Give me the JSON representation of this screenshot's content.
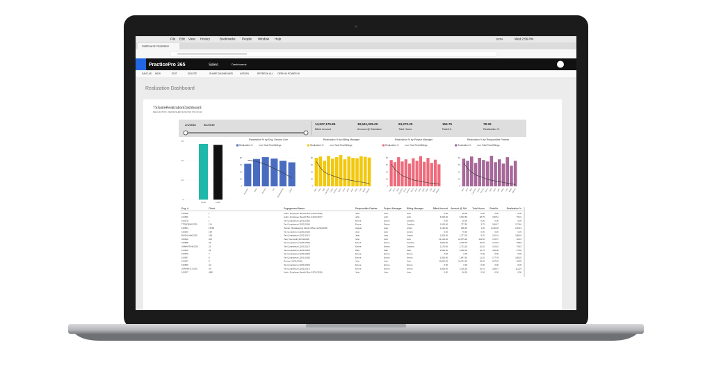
{
  "menu_bar": {
    "menus": [
      "File",
      "Edit",
      "View",
      "History",
      "Bookmarks",
      "People",
      "Window",
      "Help"
    ],
    "battery": "100%",
    "clock": "Wed 2:56 PM"
  },
  "browser": {
    "tab": "Dashboards: Realization"
  },
  "app_header": {
    "brand": "PracticePro 365",
    "area": "Sales",
    "nav": "Dashboards"
  },
  "command_bar": [
    "SAVE AS",
    "NEW",
    "EDIT",
    "DELETE",
    "SHARE DASHBOARD",
    "ASSIGN",
    "REFRESH ALL",
    "OPEN IN POWER BI"
  ],
  "page_title": "Realization Dashboard",
  "report": {
    "title": "TSSuiteRealizationDashboard",
    "subtitle": "REALIZATION • REFRESHED 9/24/2019 3:54:33 AM",
    "date_from": "2/1/2018",
    "date_to": "9/1/2019",
    "kpis": [
      {
        "value": "14,527,175.86",
        "label": "Billed Amount"
      },
      {
        "value": "18,541,035.00",
        "label": "Amount @ Standard"
      },
      {
        "value": "93,270.25",
        "label": "Total Hours"
      },
      {
        "value": "155.75",
        "label": "Rate/Hr."
      },
      {
        "value": "78.35",
        "label": "Realization %"
      }
    ],
    "year_chart": {
      "categories": [
        "2018",
        "2019"
      ],
      "values": [
        28.6,
        28.1
      ],
      "colors": [
        "#1fb8aa",
        "#111111"
      ],
      "ylim": [
        0,
        30
      ],
      "yticks": [
        0,
        10,
        20,
        30
      ]
    },
    "combo_charts": [
      {
        "title": "Realization % by Eng. Service Line",
        "legend": [
          "Realization %",
          "Total Final Billings"
        ],
        "color": "#4a6cc0",
        "categories": [
          "Advisory",
          "Audit",
          "Review",
          "Tax",
          "Bookkeeping",
          "Other"
        ],
        "values": [
          63.5,
          76.9,
          82.1,
          78.3,
          72.0,
          67.5
        ],
        "line_values": [
          74,
          70,
          62,
          50,
          38,
          24
        ],
        "ylim": [
          0,
          90
        ],
        "yticks": [
          0,
          20,
          40,
          60,
          80
        ]
      },
      {
        "title": "Realization % by Billing Manager",
        "legend": [
          "Realization %",
          "Total Final Billings"
        ],
        "color": "#f2c80f",
        "categories": [
          "Alex",
          "Amy",
          "Bob",
          "Carolina",
          "Chris",
          "Emma",
          "Erica",
          "Jack",
          "John",
          "Juan",
          "Kate",
          "Lisa",
          "Mark",
          "Wendy"
        ],
        "values": [
          80,
          84,
          72,
          86,
          78,
          82,
          88,
          76,
          84,
          80,
          79,
          85,
          83,
          81
        ],
        "line_values": [
          70,
          52,
          40,
          34,
          30,
          26,
          22,
          20,
          18,
          16,
          14,
          12,
          10,
          8
        ],
        "ylim": [
          0,
          90
        ],
        "yticks": [
          0,
          20,
          40,
          60,
          80
        ]
      },
      {
        "title": "Realization % by Project Manager",
        "legend": [
          "Realization %",
          "Total Final Billings"
        ],
        "color": "#ee6b7b",
        "categories": [
          "Alex",
          "Amy",
          "Bob",
          "Carolina",
          "Chris",
          "Emma",
          "Erica",
          "Jack",
          "John",
          "Juan",
          "Kate",
          "Lisa",
          "Mark",
          "Wendy"
        ],
        "values": [
          74,
          68,
          82,
          70,
          76,
          64,
          79,
          72,
          85,
          69,
          80,
          66,
          75,
          62
        ],
        "line_values": [
          62,
          48,
          38,
          30,
          26,
          22,
          18,
          16,
          14,
          12,
          10,
          9,
          8,
          6
        ],
        "ylim": [
          0,
          90
        ],
        "yticks": [
          0,
          20,
          40,
          60,
          80
        ]
      },
      {
        "title": "Realization % by Responsible Partner",
        "legend": [
          "Realization %",
          "Total Final Billings"
        ],
        "color": "#a66999",
        "categories": [
          "Alex",
          "Amy",
          "Bob",
          "Carolina",
          "Chris",
          "Emma",
          "Erica",
          "Jack",
          "John",
          "Juan",
          "Kate",
          "Lisa",
          "Mark",
          "Wendy"
        ],
        "values": [
          78,
          72,
          84,
          66,
          80,
          74,
          70,
          86,
          68,
          76,
          64,
          82,
          58,
          72
        ],
        "line_values": [
          66,
          50,
          40,
          32,
          28,
          24,
          20,
          17,
          15,
          13,
          11,
          9,
          7,
          5
        ],
        "ylim": [
          0,
          90
        ],
        "yticks": [
          0,
          20,
          40,
          60,
          80
        ]
      }
    ]
  },
  "table": {
    "headers": [
      "Eng. #",
      "Client",
      "Engagement Name",
      "Responsible Partner",
      "Project Manager",
      "Billing Manager",
      "Billed Amount",
      "Amount @ Std.",
      "Total Hours",
      "Rate/Hr.",
      "Realization %"
    ],
    "rows": [
      [
        "100028",
        "1",
        "Audit - Employee Benefit Plan (12/31/2018)",
        "John",
        "John",
        "John",
        "0.00",
        "48.00",
        "0.00",
        "0.00",
        "0.00"
      ],
      [
        "101653",
        "1",
        "Audit - Employee Benefit Plan (12/31/2017)",
        "John",
        "John",
        "John",
        "4,900.00",
        "6,532.50",
        "48.75",
        "100.51",
        "75.01"
      ],
      [
        "100175",
        "1",
        "Tax Compliance (12/31/2018)",
        "Emma",
        "Emma",
        "Carolina",
        "0.00",
        "20.00",
        "0.00",
        "0.00",
        "0.00"
      ],
      [
        "TTRKDEMO1750",
        "110",
        "Tax Compliance (12/31/2018)",
        "Emma",
        "Emma",
        "Carolina",
        "1,000.00",
        "727.50",
        "3.75",
        "266.67",
        "137.46"
      ],
      [
        "100564",
        "15780",
        "Payroll - Bookkeeping Family Office (12/31/2018)",
        "Angela",
        "Juan",
        "Arthur",
        "1,100.00",
        "806.25",
        "1.00",
        "1,100.00",
        "136.43"
      ],
      [
        "100563",
        "198",
        "Tax Compliance (12/31/2018)",
        "Juan",
        "Juan",
        "Carola",
        "0.00",
        "78.00",
        "0.00",
        "0.00",
        "0.00"
      ],
      [
        "RAIDULHA01750",
        "198",
        "Tax Compliance (12/31/2017)",
        "Juan",
        "Juan",
        "Carola",
        "1,500.00",
        "1,377.00",
        "9.25",
        "162.16",
        "108.93"
      ],
      [
        "100522",
        "200",
        "Peer Year Audit (12/31/2018)",
        "John",
        "John",
        "John",
        "21,100.00",
        "22,875.00",
        "119.50",
        "176.57",
        "92.24"
      ],
      [
        "100668",
        "23",
        "Tax Compliance (12/31/2018)",
        "Emma",
        "Emma",
        "Carolina",
        "2,900.00",
        "3,678.75",
        "20.50",
        "141.46",
        "78.83"
      ],
      [
        "SAMAVIT0461750",
        "23",
        "Tax Compliance (12/31/2017)",
        "Emma",
        "Emma",
        "Carolina",
        "2,175.00",
        "2,731.25",
        "15.25",
        "142.62",
        "79.63"
      ],
      [
        "101913",
        "25",
        "Tax Compliance (12/31/2018)",
        "Walt",
        "Walt",
        "Walt",
        "2,500.00",
        "2,560.00",
        "12.75",
        "196.08",
        "97.66"
      ],
      [
        "100570",
        "7",
        "Tax Compliance (12/31/2018)",
        "Emma",
        "Emma",
        "Emma",
        "0.00",
        "0.00",
        "0.00",
        "0.00",
        "0.00"
      ],
      [
        "100607",
        "8",
        "Tax Compliance (12/31/2018)",
        "Emma",
        "Emma",
        "Emma",
        "2,000.00",
        "1,847.50",
        "11.25",
        "177.78",
        "108.25"
      ],
      [
        "101637",
        "8",
        "Review (12/31/2018)",
        "John",
        "John",
        "John",
        "10,000.00",
        "10,321.25",
        "48.25",
        "207.25",
        "96.89"
      ],
      [
        "100639",
        "AA",
        "Tax Compliance (12/31/2018)",
        "Emma",
        "Emma",
        "Emma",
        "0.00",
        "0.00",
        "0.00",
        "0.00",
        "0.00"
      ],
      [
        "SARAWIT171750",
        "AA",
        "Tax Compliance (12/31/2017)",
        "Emma",
        "Emma",
        "Emma",
        "3,600.00",
        "3,236.25",
        "15.75",
        "228.57",
        "111.24"
      ],
      [
        "100527",
        "ABD",
        "Audit - Employee Benefit Plan (12/31/2018)",
        "John",
        "John",
        "John",
        "0.00",
        "48.00",
        "0.00",
        "0.00",
        "0.00"
      ]
    ]
  }
}
